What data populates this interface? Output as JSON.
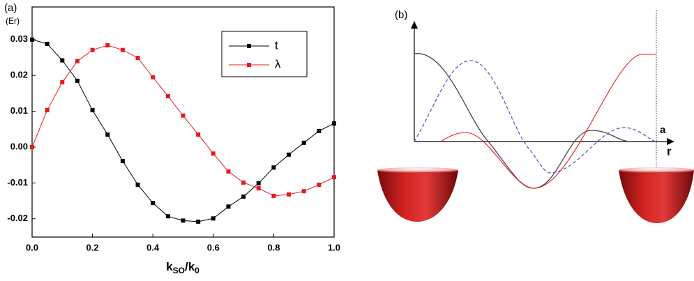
{
  "chart_data": {
    "type": "line",
    "panel_label": "(a)",
    "y_unit": "(Er)",
    "xlabel_parts": [
      "k",
      "SO",
      "/k",
      "0"
    ],
    "x": [
      0,
      0.05,
      0.1,
      0.15,
      0.2,
      0.25,
      0.3,
      0.35,
      0.4,
      0.45,
      0.5,
      0.55,
      0.6,
      0.65,
      0.7,
      0.75,
      0.8,
      0.85,
      0.9,
      0.95,
      1.0
    ],
    "series": [
      {
        "name": "t",
        "color": "#000000",
        "values": [
          0.03,
          0.0288,
          0.0242,
          0.0185,
          0.0103,
          0.0035,
          -0.0039,
          -0.0105,
          -0.0156,
          -0.0193,
          -0.0205,
          -0.0208,
          -0.0199,
          -0.0166,
          -0.0138,
          -0.0101,
          -0.0057,
          -0.0021,
          0.0012,
          0.0045,
          0.0066
        ]
      },
      {
        "name": "λ",
        "color": "#e8181e",
        "values": [
          0.0,
          0.0103,
          0.0181,
          0.024,
          0.0271,
          0.0284,
          0.0271,
          0.0249,
          0.0195,
          0.0142,
          0.0088,
          0.0035,
          -0.0018,
          -0.0068,
          -0.0099,
          -0.0115,
          -0.0136,
          -0.0132,
          -0.0123,
          -0.0105,
          -0.0084
        ]
      }
    ],
    "xlim": [
      0,
      1.0
    ],
    "xticks": [
      {
        "value": 0,
        "label": "0.0"
      },
      0.2,
      0.4,
      0.6,
      0.8,
      {
        "value": 1,
        "label": "1.0"
      }
    ],
    "ylim": [
      -0.0251,
      0.0391
    ],
    "yticks": [
      -0.02,
      -0.01,
      {
        "value": 0,
        "label": "0.00"
      },
      0.01,
      0.02,
      0.03
    ],
    "legend": "upper right"
  },
  "panel_b": {
    "label": "(b)",
    "a_label": "a",
    "r_label": "r"
  }
}
